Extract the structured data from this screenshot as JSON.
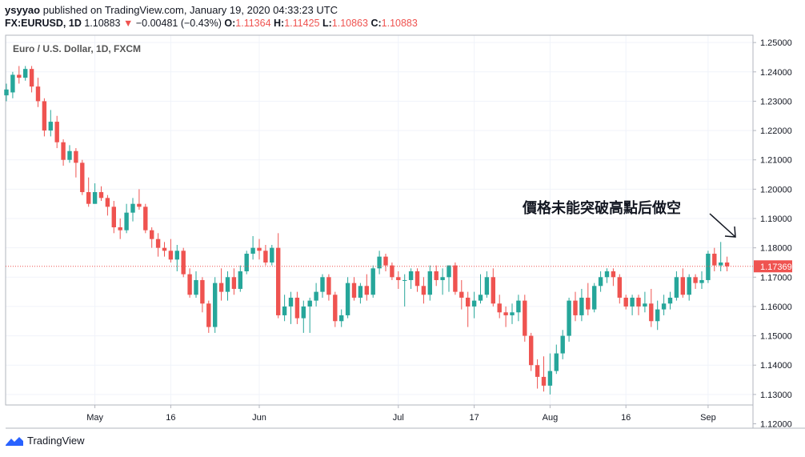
{
  "header": {
    "author": "ysyyao",
    "published_text": "published on TradingView.com, January 19, 2020 04:33:23 UTC",
    "symbol": "FX:EURUSD, 1D",
    "last": "1.10883",
    "change_arrow": "▼",
    "change": "−0.00481 (−0.43%)",
    "o_label": "O:",
    "o_value": "1.11364",
    "h_label": "H:",
    "h_value": "1.11425",
    "l_label": "L:",
    "l_value": "1.10863",
    "c_label": "C:",
    "c_value": "1.10883"
  },
  "footer": {
    "brand": "TradingView"
  },
  "colors": {
    "up": "#26a69a",
    "down": "#ef5350",
    "grid": "#f0f3fa",
    "axis": "#131722"
  },
  "chart_data": {
    "type": "candlestick",
    "title": "Euro / U.S. Dollar, 1D, FXCM",
    "annotation": "價格未能突破高點后做空",
    "last_price_label": "1.17369",
    "ylim": [
      1.12,
      1.25
    ],
    "yticks": [
      "1.12000",
      "1.13000",
      "1.14000",
      "1.15000",
      "1.16000",
      "1.17000",
      "1.18000",
      "1.19000",
      "1.20000",
      "1.21000",
      "1.22000",
      "1.23000",
      "1.24000",
      "1.25000"
    ],
    "xticks": [
      {
        "label": "May",
        "index": 14
      },
      {
        "label": "16",
        "index": 26
      },
      {
        "label": "Jun",
        "index": 40
      },
      {
        "label": "Jul",
        "index": 62
      },
      {
        "label": "17",
        "index": 74
      },
      {
        "label": "Aug",
        "index": 86
      },
      {
        "label": "16",
        "index": 98
      },
      {
        "label": "Sep",
        "index": 111
      }
    ],
    "ohlc": [
      [
        1.232,
        1.236,
        1.23,
        1.234
      ],
      [
        1.233,
        1.24,
        1.231,
        1.239
      ],
      [
        1.239,
        1.242,
        1.236,
        1.238
      ],
      [
        1.238,
        1.242,
        1.237,
        1.241
      ],
      [
        1.241,
        1.242,
        1.233,
        1.235
      ],
      [
        1.235,
        1.238,
        1.228,
        1.23
      ],
      [
        1.23,
        1.231,
        1.218,
        1.22
      ],
      [
        1.22,
        1.227,
        1.218,
        1.223
      ],
      [
        1.223,
        1.225,
        1.214,
        1.216
      ],
      [
        1.216,
        1.217,
        1.208,
        1.21
      ],
      [
        1.21,
        1.215,
        1.209,
        1.213
      ],
      [
        1.213,
        1.214,
        1.204,
        1.209
      ],
      [
        1.209,
        1.21,
        1.198,
        1.199
      ],
      [
        1.199,
        1.204,
        1.194,
        1.195
      ],
      [
        1.195,
        1.202,
        1.195,
        1.199
      ],
      [
        1.199,
        1.201,
        1.196,
        1.197
      ],
      [
        1.197,
        1.198,
        1.191,
        1.194
      ],
      [
        1.194,
        1.196,
        1.185,
        1.187
      ],
      [
        1.187,
        1.19,
        1.183,
        1.186
      ],
      [
        1.186,
        1.195,
        1.185,
        1.192
      ],
      [
        1.192,
        1.197,
        1.189,
        1.195
      ],
      [
        1.195,
        1.2,
        1.193,
        1.194
      ],
      [
        1.194,
        1.195,
        1.185,
        1.186
      ],
      [
        1.186,
        1.187,
        1.18,
        1.183
      ],
      [
        1.183,
        1.185,
        1.177,
        1.18
      ],
      [
        1.18,
        1.182,
        1.177,
        1.179
      ],
      [
        1.179,
        1.183,
        1.175,
        1.176
      ],
      [
        1.176,
        1.181,
        1.172,
        1.179
      ],
      [
        1.179,
        1.18,
        1.17,
        1.171
      ],
      [
        1.171,
        1.173,
        1.163,
        1.164
      ],
      [
        1.164,
        1.172,
        1.163,
        1.169
      ],
      [
        1.169,
        1.17,
        1.158,
        1.161
      ],
      [
        1.161,
        1.162,
        1.151,
        1.153
      ],
      [
        1.153,
        1.17,
        1.151,
        1.168
      ],
      [
        1.168,
        1.173,
        1.162,
        1.165
      ],
      [
        1.165,
        1.172,
        1.162,
        1.17
      ],
      [
        1.17,
        1.173,
        1.164,
        1.166
      ],
      [
        1.166,
        1.174,
        1.165,
        1.172
      ],
      [
        1.172,
        1.179,
        1.171,
        1.178
      ],
      [
        1.178,
        1.184,
        1.176,
        1.18
      ],
      [
        1.18,
        1.183,
        1.176,
        1.179
      ],
      [
        1.179,
        1.181,
        1.174,
        1.175
      ],
      [
        1.175,
        1.181,
        1.174,
        1.18
      ],
      [
        1.18,
        1.185,
        1.156,
        1.157
      ],
      [
        1.157,
        1.164,
        1.155,
        1.16
      ],
      [
        1.16,
        1.165,
        1.154,
        1.163
      ],
      [
        1.163,
        1.165,
        1.154,
        1.156
      ],
      [
        1.156,
        1.162,
        1.151,
        1.16
      ],
      [
        1.16,
        1.163,
        1.151,
        1.162
      ],
      [
        1.162,
        1.168,
        1.16,
        1.165
      ],
      [
        1.165,
        1.171,
        1.163,
        1.17
      ],
      [
        1.17,
        1.171,
        1.162,
        1.164
      ],
      [
        1.164,
        1.165,
        1.153,
        1.155
      ],
      [
        1.155,
        1.159,
        1.153,
        1.157
      ],
      [
        1.157,
        1.17,
        1.156,
        1.168
      ],
      [
        1.168,
        1.17,
        1.162,
        1.163
      ],
      [
        1.163,
        1.168,
        1.161,
        1.167
      ],
      [
        1.167,
        1.171,
        1.162,
        1.164
      ],
      [
        1.164,
        1.174,
        1.163,
        1.173
      ],
      [
        1.173,
        1.179,
        1.171,
        1.177
      ],
      [
        1.177,
        1.178,
        1.172,
        1.174
      ],
      [
        1.174,
        1.175,
        1.169,
        1.17
      ],
      [
        1.17,
        1.172,
        1.166,
        1.169
      ],
      [
        1.169,
        1.171,
        1.16,
        1.169
      ],
      [
        1.169,
        1.173,
        1.166,
        1.172
      ],
      [
        1.172,
        1.173,
        1.165,
        1.167
      ],
      [
        1.167,
        1.17,
        1.161,
        1.164
      ],
      [
        1.164,
        1.174,
        1.162,
        1.172
      ],
      [
        1.172,
        1.174,
        1.167,
        1.169
      ],
      [
        1.169,
        1.173,
        1.164,
        1.17
      ],
      [
        1.17,
        1.174,
        1.165,
        1.174
      ],
      [
        1.174,
        1.175,
        1.164,
        1.165
      ],
      [
        1.165,
        1.169,
        1.159,
        1.163
      ],
      [
        1.163,
        1.165,
        1.153,
        1.16
      ],
      [
        1.16,
        1.165,
        1.156,
        1.162
      ],
      [
        1.162,
        1.171,
        1.161,
        1.164
      ],
      [
        1.164,
        1.172,
        1.163,
        1.17
      ],
      [
        1.17,
        1.173,
        1.16,
        1.161
      ],
      [
        1.161,
        1.164,
        1.156,
        1.158
      ],
      [
        1.158,
        1.16,
        1.153,
        1.157
      ],
      [
        1.157,
        1.161,
        1.154,
        1.158
      ],
      [
        1.158,
        1.164,
        1.155,
        1.162
      ],
      [
        1.162,
        1.164,
        1.148,
        1.15
      ],
      [
        1.15,
        1.151,
        1.138,
        1.14
      ],
      [
        1.14,
        1.142,
        1.132,
        1.136
      ],
      [
        1.136,
        1.143,
        1.131,
        1.133
      ],
      [
        1.133,
        1.144,
        1.13,
        1.138
      ],
      [
        1.138,
        1.147,
        1.137,
        1.144
      ],
      [
        1.144,
        1.152,
        1.142,
        1.15
      ],
      [
        1.15,
        1.163,
        1.148,
        1.162
      ],
      [
        1.162,
        1.165,
        1.155,
        1.157
      ],
      [
        1.157,
        1.166,
        1.155,
        1.163
      ],
      [
        1.163,
        1.168,
        1.157,
        1.159
      ],
      [
        1.159,
        1.168,
        1.158,
        1.167
      ],
      [
        1.167,
        1.172,
        1.165,
        1.17
      ],
      [
        1.17,
        1.173,
        1.168,
        1.172
      ],
      [
        1.172,
        1.173,
        1.167,
        1.17
      ],
      [
        1.17,
        1.171,
        1.161,
        1.163
      ],
      [
        1.163,
        1.164,
        1.159,
        1.16
      ],
      [
        1.16,
        1.164,
        1.157,
        1.163
      ],
      [
        1.163,
        1.164,
        1.157,
        1.16
      ],
      [
        1.16,
        1.165,
        1.158,
        1.161
      ],
      [
        1.161,
        1.166,
        1.153,
        1.155
      ],
      [
        1.155,
        1.162,
        1.152,
        1.159
      ],
      [
        1.159,
        1.164,
        1.157,
        1.161
      ],
      [
        1.161,
        1.165,
        1.159,
        1.163
      ],
      [
        1.163,
        1.172,
        1.162,
        1.17
      ],
      [
        1.17,
        1.173,
        1.163,
        1.164
      ],
      [
        1.164,
        1.171,
        1.162,
        1.17
      ],
      [
        1.17,
        1.171,
        1.166,
        1.168
      ],
      [
        1.168,
        1.172,
        1.166,
        1.169
      ],
      [
        1.169,
        1.179,
        1.168,
        1.178
      ],
      [
        1.178,
        1.18,
        1.172,
        1.174
      ],
      [
        1.174,
        1.182,
        1.172,
        1.175
      ],
      [
        1.175,
        1.177,
        1.172,
        1.1737
      ]
    ]
  }
}
